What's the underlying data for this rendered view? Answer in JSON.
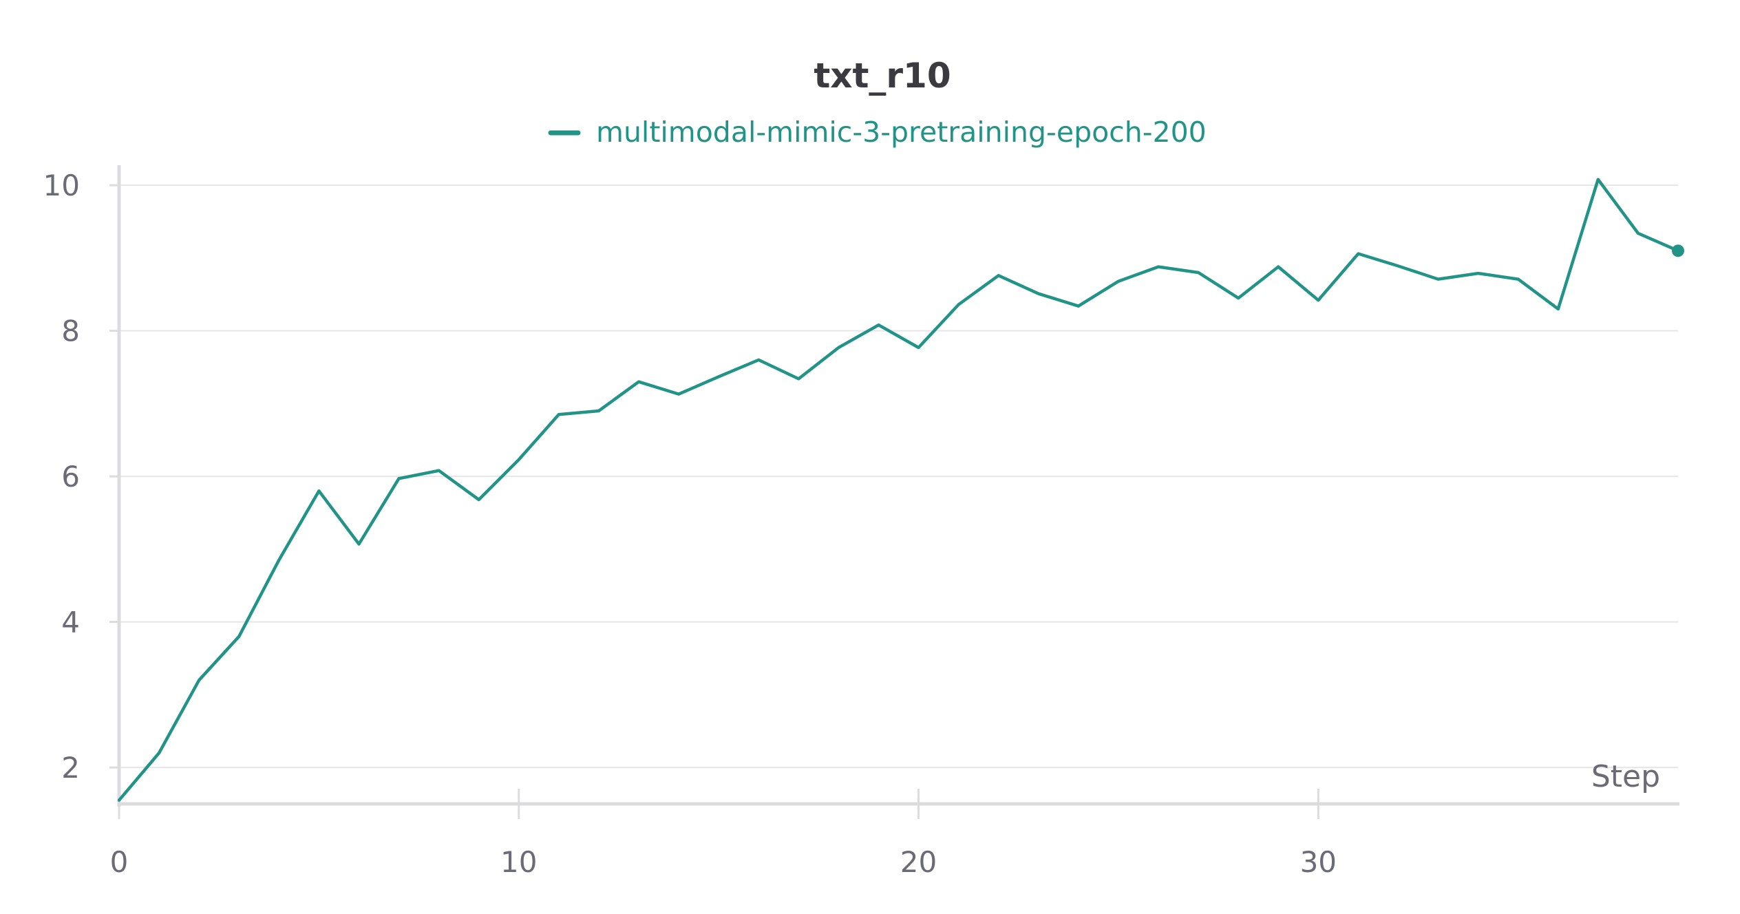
{
  "chart_data": {
    "type": "line",
    "title": "txt_r10",
    "xlabel": "Step",
    "ylabel": "",
    "xlim": [
      0,
      39
    ],
    "ylim": [
      1.5,
      10.2
    ],
    "x_ticks": [
      0,
      10,
      20,
      30
    ],
    "y_ticks": [
      2,
      4,
      6,
      8,
      10
    ],
    "grid": "horizontal",
    "legend_position": "top-center",
    "series": [
      {
        "name": "multimodal-mimic-3-pretraining-epoch-200",
        "color": "#229487",
        "x": [
          0,
          1,
          2,
          3,
          4,
          5,
          6,
          7,
          8,
          9,
          10,
          11,
          12,
          13,
          14,
          15,
          16,
          17,
          18,
          19,
          20,
          21,
          22,
          23,
          24,
          25,
          26,
          27,
          28,
          29,
          30,
          31,
          32,
          33,
          34,
          35,
          36,
          37,
          38,
          39
        ],
        "values": [
          1.55,
          2.2,
          3.2,
          3.8,
          4.85,
          5.8,
          5.07,
          5.97,
          6.08,
          5.68,
          6.23,
          6.85,
          6.9,
          7.3,
          7.13,
          7.37,
          7.6,
          7.34,
          7.77,
          8.08,
          7.77,
          8.36,
          8.76,
          8.51,
          8.34,
          8.68,
          8.88,
          8.8,
          8.45,
          8.88,
          8.42,
          9.06,
          8.89,
          8.71,
          8.79,
          8.71,
          8.3,
          10.08,
          9.34,
          9.1
        ]
      }
    ]
  }
}
